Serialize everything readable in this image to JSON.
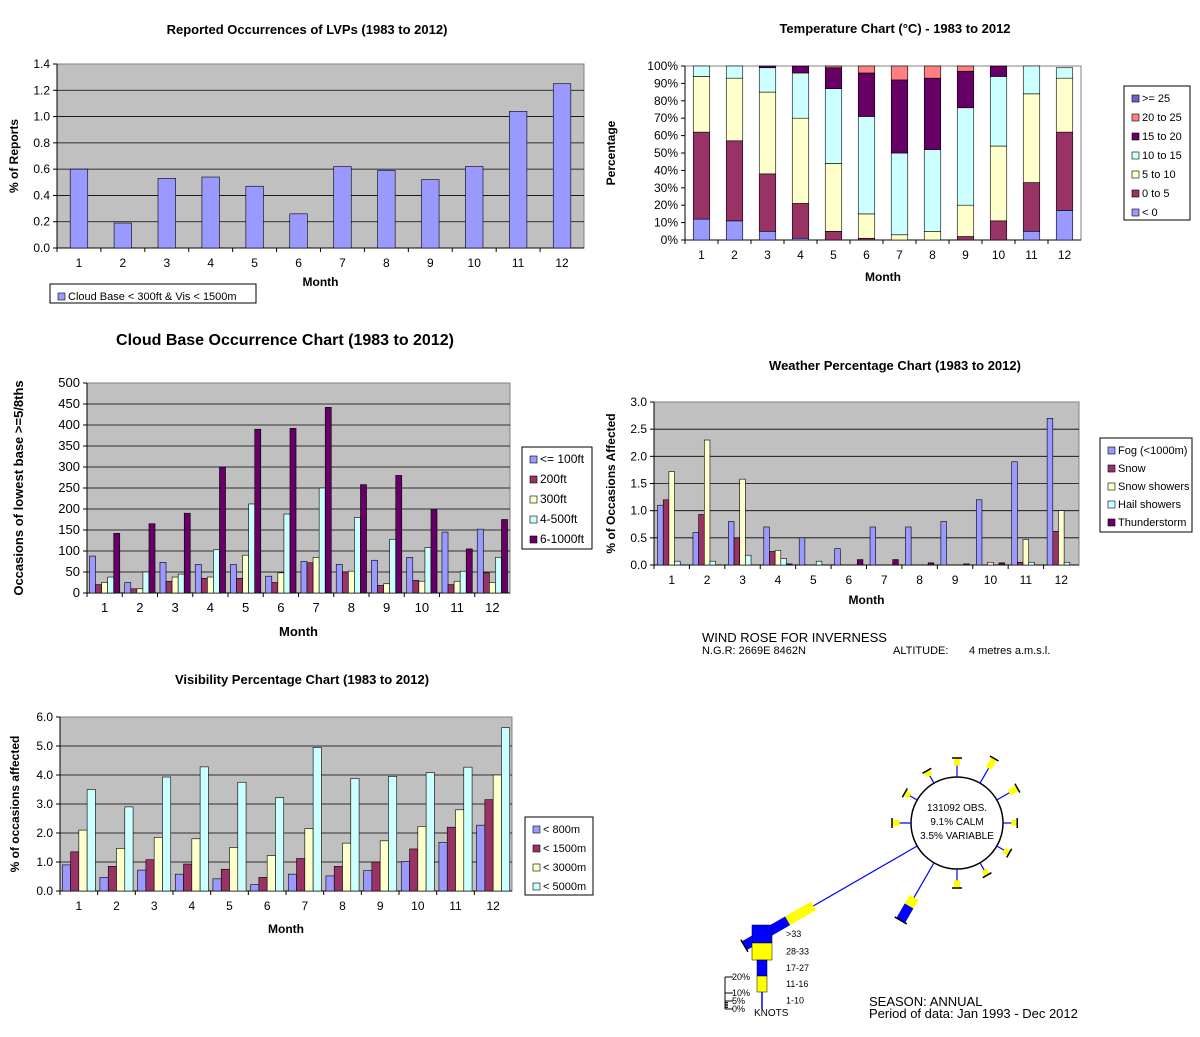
{
  "chart_data": [
    {
      "id": "lvp",
      "type": "bar",
      "title": "Reported Occurrences of LVPs (1983 to 2012)",
      "xlabel": "Month",
      "ylabel": "% of Reports",
      "categories": [
        "1",
        "2",
        "3",
        "4",
        "5",
        "6",
        "7",
        "8",
        "9",
        "10",
        "11",
        "12"
      ],
      "ylim": [
        0,
        1.4
      ],
      "yticks": [
        "0.0",
        "0.2",
        "0.4",
        "0.6",
        "0.8",
        "1.0",
        "1.2",
        "1.4"
      ],
      "series": [
        {
          "name": "Cloud Base < 300ft & Vis < 1500m",
          "color": "#9999ff",
          "values": [
            0.6,
            0.19,
            0.53,
            0.54,
            0.47,
            0.26,
            0.62,
            0.59,
            0.52,
            0.62,
            1.04,
            1.25
          ]
        }
      ],
      "grid": true,
      "legend_position": "bottom-left"
    },
    {
      "id": "temperature",
      "type": "bar",
      "stacked": true,
      "title": "Temperature Chart (°C) - 1983 to 2012",
      "xlabel": "Month",
      "ylabel": "Percentage",
      "categories": [
        "1",
        "2",
        "3",
        "4",
        "5",
        "6",
        "7",
        "8",
        "9",
        "10",
        "11",
        "12"
      ],
      "ylim": [
        0,
        100
      ],
      "yticks": [
        "0%",
        "10%",
        "20%",
        "30%",
        "40%",
        "50%",
        "60%",
        "70%",
        "80%",
        "90%",
        "100%"
      ],
      "series": [
        {
          "name": "< 0",
          "color": "#9999ff",
          "values": [
            12,
            11,
            5,
            1,
            0,
            0,
            0,
            0,
            0,
            0,
            5,
            17
          ]
        },
        {
          "name": "0 to 5",
          "color": "#993366",
          "values": [
            50,
            46,
            33,
            20,
            5,
            1,
            0,
            0,
            2,
            11,
            28,
            45
          ]
        },
        {
          "name": "5 to 10",
          "color": "#ffffcc",
          "values": [
            32,
            36,
            47,
            49,
            39,
            14,
            3,
            5,
            18,
            43,
            51,
            31
          ]
        },
        {
          "name": "10 to 15",
          "color": "#ccffff",
          "values": [
            6,
            7,
            14,
            26,
            43,
            56,
            47,
            47,
            56,
            40,
            16,
            6
          ]
        },
        {
          "name": "15 to 20",
          "color": "#660066",
          "values": [
            0,
            0,
            1,
            4,
            12,
            25,
            42,
            41,
            21,
            6,
            0,
            0
          ]
        },
        {
          "name": "20 to 25",
          "color": "#ff8080",
          "values": [
            0,
            0,
            0,
            0,
            1,
            4,
            8,
            7,
            3,
            0,
            0,
            0
          ]
        },
        {
          "name": ">= 25",
          "color": "#6666cc",
          "values": [
            0,
            0,
            0,
            0,
            0,
            0,
            0,
            0,
            0,
            0,
            0,
            0
          ]
        }
      ],
      "legend_order": [
        ">= 25",
        "20 to 25",
        "15 to 20",
        "10 to 15",
        "5 to 10",
        "0 to 5",
        "< 0"
      ],
      "grid": false,
      "legend_position": "right"
    },
    {
      "id": "cloudbase",
      "type": "bar",
      "title": "Cloud Base Occurrence Chart (1983 to 2012)",
      "xlabel": "Month",
      "ylabel": "Occasions of lowest base >=5/8ths",
      "categories": [
        "1",
        "2",
        "3",
        "4",
        "5",
        "6",
        "7",
        "8",
        "9",
        "10",
        "11",
        "12"
      ],
      "ylim": [
        0,
        500
      ],
      "yticks": [
        "0",
        "50",
        "100",
        "150",
        "200",
        "250",
        "300",
        "350",
        "400",
        "450",
        "500"
      ],
      "series": [
        {
          "name": "<= 100ft",
          "color": "#9999ff",
          "values": [
            88,
            25,
            73,
            68,
            68,
            40,
            75,
            68,
            78,
            85,
            145,
            152
          ]
        },
        {
          "name": "200ft",
          "color": "#993366",
          "values": [
            20,
            10,
            28,
            35,
            35,
            25,
            72,
            50,
            18,
            30,
            20,
            48
          ]
        },
        {
          "name": "300ft",
          "color": "#ffffcc",
          "values": [
            25,
            10,
            38,
            38,
            90,
            48,
            85,
            52,
            22,
            28,
            28,
            25
          ]
        },
        {
          "name": "4-500ft",
          "color": "#ccffff",
          "values": [
            38,
            50,
            45,
            103,
            212,
            188,
            250,
            180,
            128,
            108,
            52,
            85
          ]
        },
        {
          "name": "6-1000ft",
          "color": "#660066",
          "values": [
            142,
            165,
            190,
            300,
            390,
            392,
            442,
            258,
            280,
            198,
            105,
            175
          ]
        }
      ],
      "grid": true,
      "legend_position": "right"
    },
    {
      "id": "weather",
      "type": "bar",
      "title": "Weather Percentage Chart (1983 to 2012)",
      "xlabel": "Month",
      "ylabel": "% of Occasions Affected",
      "categories": [
        "1",
        "2",
        "3",
        "4",
        "5",
        "6",
        "7",
        "8",
        "9",
        "10",
        "11",
        "12"
      ],
      "ylim": [
        0,
        3.0
      ],
      "yticks": [
        "0.0",
        "0.5",
        "1.0",
        "1.5",
        "2.0",
        "2.5",
        "3.0"
      ],
      "series": [
        {
          "name": "Fog (<1000m)",
          "color": "#9999ff",
          "values": [
            1.1,
            0.6,
            0.8,
            0.7,
            0.5,
            0.3,
            0.7,
            0.7,
            0.8,
            1.2,
            1.9,
            2.7
          ]
        },
        {
          "name": "Snow",
          "color": "#993366",
          "values": [
            1.2,
            0.93,
            0.5,
            0.25,
            0.0,
            0.0,
            0.0,
            0.0,
            0.0,
            0.0,
            0.05,
            0.62
          ]
        },
        {
          "name": "Snow showers",
          "color": "#ffffcc",
          "values": [
            1.72,
            2.3,
            1.58,
            0.27,
            0.0,
            0.0,
            0.0,
            0.0,
            0.0,
            0.05,
            0.47,
            1.0
          ]
        },
        {
          "name": "Hail showers",
          "color": "#ccffff",
          "values": [
            0.07,
            0.07,
            0.18,
            0.12,
            0.07,
            0.0,
            0.0,
            0.0,
            0.0,
            0.0,
            0.05,
            0.05
          ]
        },
        {
          "name": "Thunderstorm",
          "color": "#660066",
          "values": [
            0.0,
            0.0,
            0.0,
            0.02,
            0.0,
            0.1,
            0.1,
            0.04,
            0.02,
            0.04,
            0.0,
            0.0
          ]
        }
      ],
      "grid": true,
      "legend_position": "right"
    },
    {
      "id": "visibility",
      "type": "bar",
      "title": "Visibility Percentage Chart (1983 to 2012)",
      "xlabel": "Month",
      "ylabel": "% of occasions affected",
      "categories": [
        "1",
        "2",
        "3",
        "4",
        "5",
        "6",
        "7",
        "8",
        "9",
        "10",
        "11",
        "12"
      ],
      "ylim": [
        0,
        6.0
      ],
      "yticks": [
        "0.0",
        "1.0",
        "2.0",
        "3.0",
        "4.0",
        "5.0",
        "6.0"
      ],
      "series": [
        {
          "name": "< 800m",
          "color": "#9999ff",
          "values": [
            0.9,
            0.47,
            0.72,
            0.58,
            0.42,
            0.22,
            0.58,
            0.52,
            0.7,
            1.02,
            1.68,
            2.27
          ]
        },
        {
          "name": "< 1500m",
          "color": "#993366",
          "values": [
            1.35,
            0.85,
            1.08,
            0.93,
            0.75,
            0.47,
            1.12,
            0.85,
            1.0,
            1.45,
            2.2,
            3.15
          ]
        },
        {
          "name": "< 3000m",
          "color": "#ffffcc",
          "values": [
            2.1,
            1.47,
            1.85,
            1.8,
            1.5,
            1.22,
            2.15,
            1.65,
            1.73,
            2.23,
            2.8,
            4.0
          ]
        },
        {
          "name": "< 5000m",
          "color": "#ccffff",
          "values": [
            3.5,
            2.9,
            3.93,
            4.28,
            3.75,
            3.22,
            4.95,
            3.88,
            3.95,
            4.08,
            4.27,
            5.63
          ]
        }
      ],
      "grid": true,
      "legend_position": "right"
    }
  ],
  "windrose": {
    "title": "WIND ROSE FOR INVERNESS",
    "ngr": "N.G.R: 2669E 8462N",
    "altitude_label": "ALTITUDE:",
    "altitude_value": "4 metres a.m.s.l.",
    "obs": "131092 OBS.",
    "calm": "9.1% CALM",
    "variable": "3.5% VARIABLE",
    "season": "SEASON: ANNUAL",
    "period": "Period of data: Jan 1993 - Dec 2012",
    "scale_labels": [
      "20%",
      "10%",
      "5%",
      "0%"
    ],
    "speed_labels": [
      ">33",
      "28-33",
      "17-27",
      "11-16",
      "1-10"
    ],
    "units_label": "KNOTS",
    "colors": {
      "high": "#0000ff",
      "mid": "#ffff00",
      "line": "#0000ff"
    },
    "arms": [
      {
        "direction_deg": 0,
        "freq_pct": 2.0
      },
      {
        "direction_deg": 30,
        "freq_pct": 3.0
      },
      {
        "direction_deg": 60,
        "freq_pct": 2.5
      },
      {
        "direction_deg": 90,
        "freq_pct": 1.5
      },
      {
        "direction_deg": 120,
        "freq_pct": 1.5
      },
      {
        "direction_deg": 150,
        "freq_pct": 1.5
      },
      {
        "direction_deg": 180,
        "freq_pct": 2.0
      },
      {
        "direction_deg": 210,
        "freq_pct": 7.0
      },
      {
        "direction_deg": 240,
        "freq_pct": 21.0
      },
      {
        "direction_deg": 270,
        "freq_pct": 2.0
      },
      {
        "direction_deg": 300,
        "freq_pct": 1.5
      },
      {
        "direction_deg": 330,
        "freq_pct": 1.5
      }
    ]
  }
}
